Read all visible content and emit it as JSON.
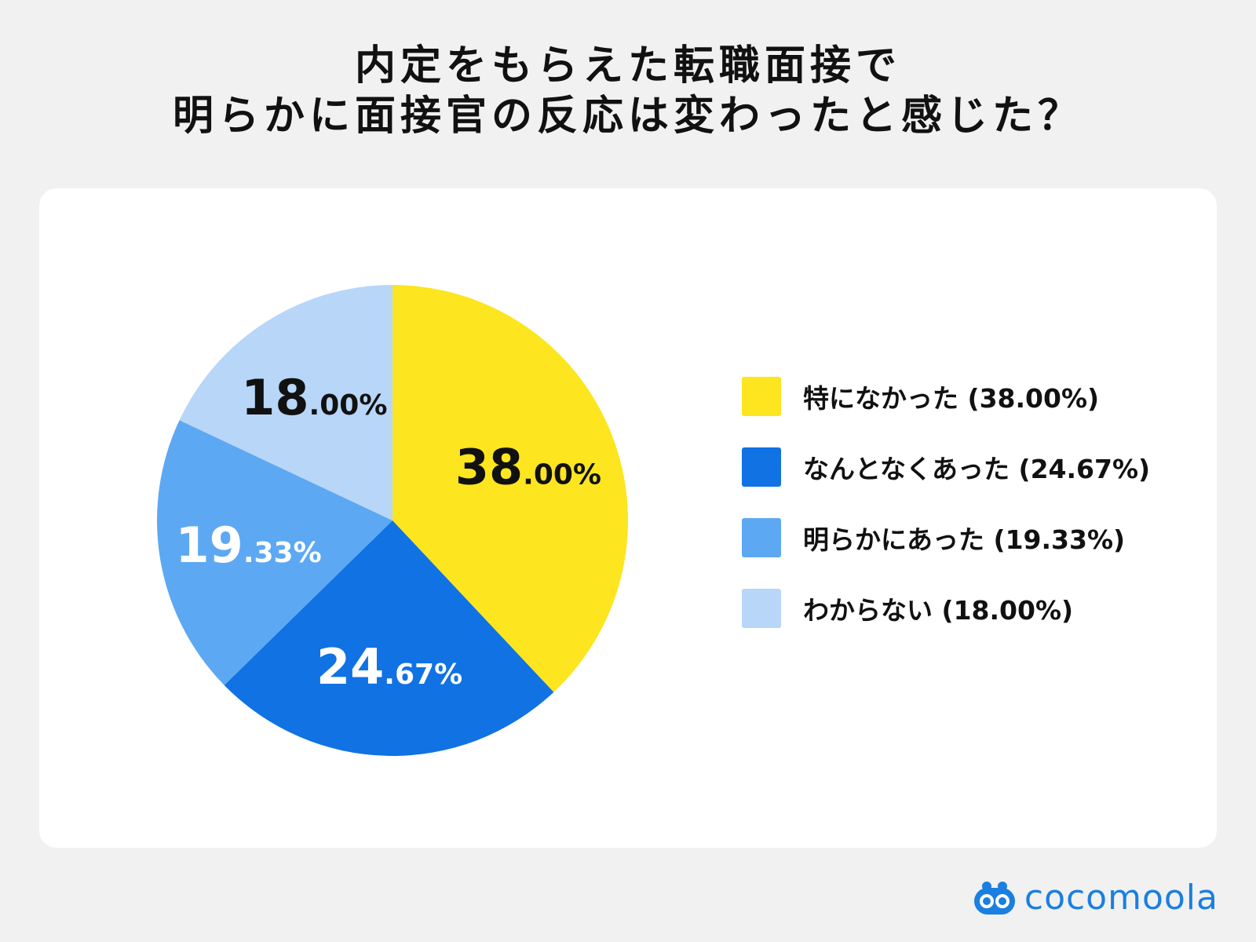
{
  "title": {
    "line1": "内定をもらえた転職面接で",
    "line2": "明らかに面接官の反応は変わったと感じた？"
  },
  "chart_data": {
    "type": "pie",
    "slices": [
      {
        "label": "特になかった (38.00%)",
        "value": 38.0,
        "int_part": "38",
        "dec_part": ".00%",
        "color": "#fde51f",
        "label_color": "#111111"
      },
      {
        "label": "なんとなくあった (24.67%)",
        "value": 24.67,
        "int_part": "24",
        "dec_part": ".67%",
        "color": "#1072e3",
        "label_color": "#ffffff"
      },
      {
        "label": "明らかにあった (19.33%)",
        "value": 19.33,
        "int_part": "19",
        "dec_part": ".33%",
        "color": "#5da8f2",
        "label_color": "#ffffff"
      },
      {
        "label": "わからない (18.00%)",
        "value": 18.0,
        "int_part": "18",
        "dec_part": ".00%",
        "color": "#b7d6f8",
        "label_color": "#111111"
      }
    ],
    "start": "12 o'clock",
    "direction": "clockwise",
    "legend_position": "right"
  },
  "brand": {
    "name": "cocomoola",
    "color": "#1a7fe0",
    "icon": "cocomoola-logo-icon"
  }
}
